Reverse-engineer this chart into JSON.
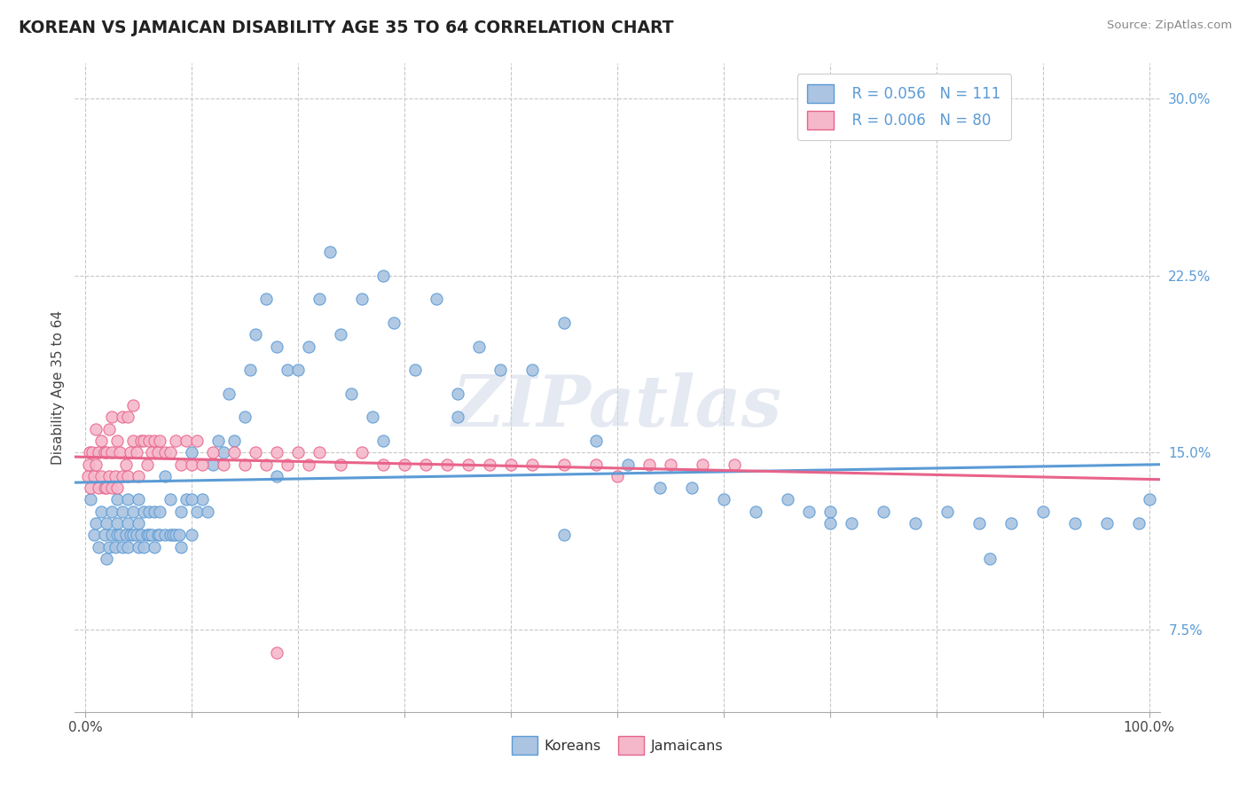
{
  "title": "KOREAN VS JAMAICAN DISABILITY AGE 35 TO 64 CORRELATION CHART",
  "source": "Source: ZipAtlas.com",
  "ylabel": "Disability Age 35 to 64",
  "xlim": [
    -0.01,
    1.01
  ],
  "ylim": [
    0.04,
    0.315
  ],
  "xtick_positions": [
    0.0,
    0.1,
    0.2,
    0.3,
    0.4,
    0.5,
    0.6,
    0.7,
    0.8,
    0.9,
    1.0
  ],
  "xtick_labels": [
    "0.0%",
    "",
    "",
    "",
    "",
    "",
    "",
    "",
    "",
    "",
    "100.0%"
  ],
  "ytick_positions": [
    0.075,
    0.15,
    0.225,
    0.3
  ],
  "ytick_labels": [
    "7.5%",
    "15.0%",
    "22.5%",
    "30.0%"
  ],
  "legend_r1": "R = 0.056",
  "legend_n1": "N = 111",
  "legend_r2": "R = 0.006",
  "legend_n2": "N = 80",
  "korean_fill": "#aac4e2",
  "korean_edge": "#5b9bd5",
  "jamaican_fill": "#f5b8cb",
  "jamaican_edge": "#e8638a",
  "bg_color": "#ffffff",
  "grid_color": "#c8c8c8",
  "watermark": "ZIPatlas",
  "korean_x": [
    0.005,
    0.008,
    0.01,
    0.012,
    0.015,
    0.018,
    0.02,
    0.02,
    0.022,
    0.025,
    0.025,
    0.028,
    0.03,
    0.03,
    0.03,
    0.032,
    0.035,
    0.035,
    0.038,
    0.04,
    0.04,
    0.04,
    0.042,
    0.045,
    0.045,
    0.048,
    0.05,
    0.05,
    0.05,
    0.052,
    0.055,
    0.055,
    0.058,
    0.06,
    0.06,
    0.062,
    0.065,
    0.065,
    0.068,
    0.07,
    0.07,
    0.075,
    0.075,
    0.08,
    0.08,
    0.082,
    0.085,
    0.088,
    0.09,
    0.09,
    0.095,
    0.1,
    0.1,
    0.105,
    0.11,
    0.115,
    0.12,
    0.125,
    0.13,
    0.135,
    0.14,
    0.15,
    0.155,
    0.16,
    0.17,
    0.18,
    0.19,
    0.2,
    0.21,
    0.22,
    0.23,
    0.24,
    0.25,
    0.26,
    0.27,
    0.28,
    0.29,
    0.31,
    0.33,
    0.35,
    0.37,
    0.39,
    0.42,
    0.45,
    0.48,
    0.51,
    0.54,
    0.57,
    0.6,
    0.63,
    0.66,
    0.68,
    0.7,
    0.72,
    0.75,
    0.78,
    0.81,
    0.84,
    0.87,
    0.9,
    0.93,
    0.96,
    0.99,
    1.0,
    0.85,
    0.7,
    0.45,
    0.35,
    0.28,
    0.18,
    0.1
  ],
  "korean_y": [
    0.13,
    0.115,
    0.12,
    0.11,
    0.125,
    0.115,
    0.105,
    0.12,
    0.11,
    0.115,
    0.125,
    0.11,
    0.115,
    0.12,
    0.13,
    0.115,
    0.11,
    0.125,
    0.115,
    0.11,
    0.12,
    0.13,
    0.115,
    0.115,
    0.125,
    0.115,
    0.11,
    0.12,
    0.13,
    0.115,
    0.11,
    0.125,
    0.115,
    0.115,
    0.125,
    0.115,
    0.11,
    0.125,
    0.115,
    0.115,
    0.125,
    0.115,
    0.14,
    0.115,
    0.13,
    0.115,
    0.115,
    0.115,
    0.11,
    0.125,
    0.13,
    0.115,
    0.15,
    0.125,
    0.13,
    0.125,
    0.145,
    0.155,
    0.15,
    0.175,
    0.155,
    0.165,
    0.185,
    0.2,
    0.215,
    0.195,
    0.185,
    0.185,
    0.195,
    0.215,
    0.235,
    0.2,
    0.175,
    0.215,
    0.165,
    0.225,
    0.205,
    0.185,
    0.215,
    0.175,
    0.195,
    0.185,
    0.185,
    0.205,
    0.155,
    0.145,
    0.135,
    0.135,
    0.13,
    0.125,
    0.13,
    0.125,
    0.125,
    0.12,
    0.125,
    0.12,
    0.125,
    0.12,
    0.12,
    0.125,
    0.12,
    0.12,
    0.12,
    0.13,
    0.105,
    0.12,
    0.115,
    0.165,
    0.155,
    0.14,
    0.13
  ],
  "jamaican_x": [
    0.002,
    0.003,
    0.004,
    0.005,
    0.006,
    0.008,
    0.01,
    0.01,
    0.012,
    0.012,
    0.015,
    0.015,
    0.018,
    0.018,
    0.02,
    0.02,
    0.022,
    0.022,
    0.025,
    0.025,
    0.025,
    0.028,
    0.03,
    0.03,
    0.032,
    0.035,
    0.035,
    0.038,
    0.04,
    0.04,
    0.042,
    0.045,
    0.045,
    0.048,
    0.05,
    0.052,
    0.055,
    0.058,
    0.06,
    0.062,
    0.065,
    0.068,
    0.07,
    0.075,
    0.08,
    0.085,
    0.09,
    0.095,
    0.1,
    0.105,
    0.11,
    0.12,
    0.13,
    0.14,
    0.15,
    0.16,
    0.17,
    0.18,
    0.19,
    0.2,
    0.21,
    0.22,
    0.24,
    0.26,
    0.28,
    0.3,
    0.32,
    0.34,
    0.36,
    0.38,
    0.4,
    0.42,
    0.45,
    0.48,
    0.5,
    0.53,
    0.55,
    0.58,
    0.61,
    0.18
  ],
  "jamaican_y": [
    0.14,
    0.145,
    0.15,
    0.135,
    0.15,
    0.14,
    0.145,
    0.16,
    0.135,
    0.15,
    0.14,
    0.155,
    0.135,
    0.15,
    0.135,
    0.15,
    0.14,
    0.16,
    0.135,
    0.15,
    0.165,
    0.14,
    0.135,
    0.155,
    0.15,
    0.14,
    0.165,
    0.145,
    0.14,
    0.165,
    0.15,
    0.155,
    0.17,
    0.15,
    0.14,
    0.155,
    0.155,
    0.145,
    0.155,
    0.15,
    0.155,
    0.15,
    0.155,
    0.15,
    0.15,
    0.155,
    0.145,
    0.155,
    0.145,
    0.155,
    0.145,
    0.15,
    0.145,
    0.15,
    0.145,
    0.15,
    0.145,
    0.15,
    0.145,
    0.15,
    0.145,
    0.15,
    0.145,
    0.15,
    0.145,
    0.145,
    0.145,
    0.145,
    0.145,
    0.145,
    0.145,
    0.145,
    0.145,
    0.145,
    0.14,
    0.145,
    0.145,
    0.145,
    0.145,
    0.065
  ]
}
